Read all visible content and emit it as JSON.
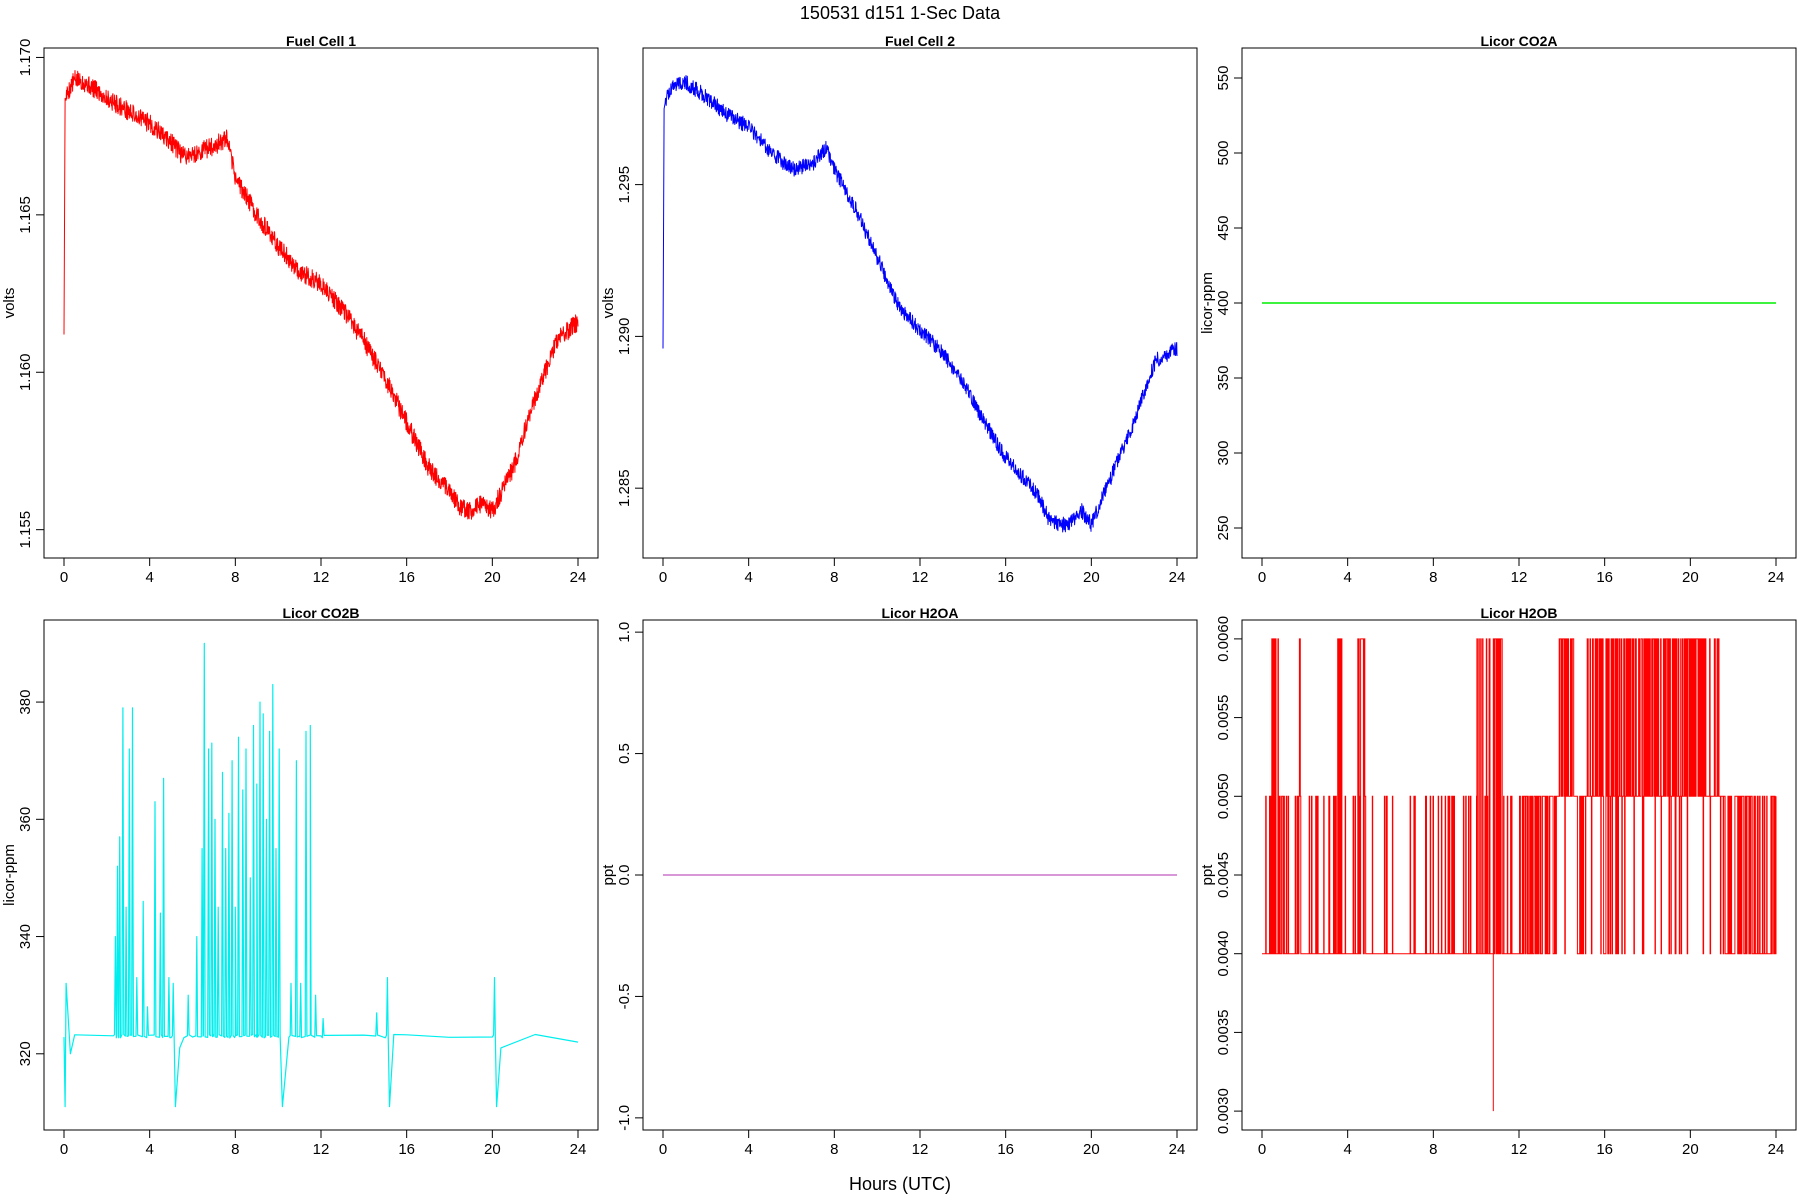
{
  "figure": {
    "title": "150531   d151   1-Sec Data",
    "xlabel": "Hours (UTC)"
  },
  "chart_data": [
    {
      "type": "line",
      "title": "Fuel Cell 1",
      "ylabel": "volts",
      "color": "#ff0000",
      "xlim": [
        0,
        24
      ],
      "ylim": [
        1.1541,
        1.1703
      ],
      "xticks": [
        0,
        4,
        8,
        12,
        16,
        20,
        24
      ],
      "yticks": [
        1.155,
        1.16,
        1.165,
        1.17
      ],
      "ytick_labels": [
        "1.155",
        "1.160",
        "1.165",
        "1.170"
      ],
      "x": [
        0,
        0.05,
        0.1,
        0.5,
        1,
        2,
        3,
        4,
        5,
        5.5,
        6,
        7,
        7.6,
        8,
        9,
        10,
        11,
        12,
        13,
        14,
        15,
        16,
        17,
        18,
        18.5,
        19,
        19.5,
        20,
        21,
        22,
        23,
        24
      ],
      "y": [
        1.1612,
        1.1687,
        1.1688,
        1.1693,
        1.1692,
        1.1687,
        1.1683,
        1.1679,
        1.1673,
        1.1669,
        1.1669,
        1.1672,
        1.1674,
        1.1662,
        1.165,
        1.164,
        1.1632,
        1.1628,
        1.162,
        1.161,
        1.1598,
        1.1584,
        1.157,
        1.1562,
        1.1557,
        1.1556,
        1.1558,
        1.1556,
        1.157,
        1.1592,
        1.161,
        1.1616
      ],
      "noise": 0.0006
    },
    {
      "type": "line",
      "title": "Fuel Cell 2",
      "ylabel": "volts",
      "color": "#0000ff",
      "xlim": [
        0,
        24
      ],
      "ylim": [
        1.2827,
        1.2995
      ],
      "xticks": [
        0,
        4,
        8,
        12,
        16,
        20,
        24
      ],
      "yticks": [
        1.285,
        1.29,
        1.295
      ],
      "ytick_labels": [
        "1.285",
        "1.290",
        "1.295"
      ],
      "x": [
        0,
        0.05,
        0.1,
        0.5,
        1,
        2,
        3,
        4,
        5,
        6,
        7,
        7.6,
        8,
        9,
        10,
        11,
        12,
        13,
        14,
        15,
        16,
        17,
        17.5,
        18,
        18.5,
        19,
        19.5,
        20,
        21,
        22,
        23,
        24
      ],
      "y": [
        1.2896,
        1.2975,
        1.2978,
        1.2983,
        1.2984,
        1.2979,
        1.2973,
        1.2969,
        1.2961,
        1.2955,
        1.2957,
        1.2962,
        1.2955,
        1.2942,
        1.2926,
        1.291,
        1.2902,
        1.2895,
        1.2885,
        1.2872,
        1.286,
        1.2852,
        1.2848,
        1.284,
        1.2838,
        1.2838,
        1.2843,
        1.2838,
        1.2855,
        1.2872,
        1.2892,
        1.2896
      ],
      "noise": 0.0005
    },
    {
      "type": "line",
      "title": "Licor CO2A",
      "ylabel": "licor-ppm",
      "color": "#00ee00",
      "xlim": [
        0,
        24
      ],
      "ylim": [
        230,
        570
      ],
      "xticks": [
        0,
        4,
        8,
        12,
        16,
        20,
        24
      ],
      "yticks": [
        250,
        300,
        350,
        400,
        450,
        500,
        550
      ],
      "ytick_labels": [
        "250",
        "300",
        "350",
        "400",
        "450",
        "500",
        "550"
      ],
      "x": [
        0,
        24
      ],
      "y": [
        400,
        400
      ],
      "noise": 0
    },
    {
      "type": "line",
      "title": "Licor CO2B",
      "ylabel": "licor-ppm",
      "color": "#00eeee",
      "xlim": [
        0,
        24
      ],
      "ylim": [
        307,
        394
      ],
      "xticks": [
        0,
        4,
        8,
        12,
        16,
        20,
        24
      ],
      "yticks": [
        320,
        340,
        360,
        380
      ],
      "ytick_labels": [
        "320",
        "340",
        "360",
        "380"
      ],
      "baseline": 323,
      "x": [
        0,
        0.05,
        0.1,
        0.3,
        0.5,
        2.3,
        3,
        5,
        5.2,
        5.4,
        5.6,
        6,
        7,
        8,
        9,
        10,
        10.2,
        10.5,
        11,
        11.5,
        12,
        14,
        15,
        15.2,
        15.4,
        16,
        18,
        20,
        20.2,
        20.4,
        22,
        24
      ],
      "y": [
        323,
        311,
        332,
        320,
        323,
        323,
        323,
        323,
        311,
        321,
        323,
        323,
        323,
        323,
        323,
        323,
        311,
        323,
        323,
        323,
        323,
        323,
        323,
        311,
        323,
        323,
        323,
        323,
        311,
        321,
        323,
        322
      ],
      "spikes": [
        [
          2.4,
          340
        ],
        [
          2.5,
          352
        ],
        [
          2.6,
          357
        ],
        [
          2.75,
          379
        ],
        [
          2.9,
          345
        ],
        [
          3.05,
          372
        ],
        [
          3.2,
          379
        ],
        [
          3.4,
          333
        ],
        [
          3.7,
          346
        ],
        [
          3.9,
          328
        ],
        [
          4.25,
          363
        ],
        [
          4.5,
          344
        ],
        [
          4.65,
          367
        ],
        [
          4.9,
          333
        ],
        [
          5.1,
          332
        ],
        [
          5.8,
          330
        ],
        [
          6.2,
          340
        ],
        [
          6.45,
          355
        ],
        [
          6.55,
          390
        ],
        [
          6.75,
          372
        ],
        [
          6.9,
          373
        ],
        [
          7.05,
          360
        ],
        [
          7.2,
          345
        ],
        [
          7.4,
          368
        ],
        [
          7.55,
          355
        ],
        [
          7.7,
          361
        ],
        [
          7.85,
          370
        ],
        [
          8.0,
          345
        ],
        [
          8.15,
          374
        ],
        [
          8.35,
          365
        ],
        [
          8.5,
          372
        ],
        [
          8.7,
          350
        ],
        [
          8.85,
          376
        ],
        [
          9.0,
          366
        ],
        [
          9.15,
          380
        ],
        [
          9.3,
          378
        ],
        [
          9.45,
          360
        ],
        [
          9.6,
          375
        ],
        [
          9.75,
          383
        ],
        [
          9.9,
          355
        ],
        [
          10.05,
          372
        ],
        [
          10.6,
          332
        ],
        [
          10.85,
          370
        ],
        [
          11.05,
          332
        ],
        [
          11.3,
          375
        ],
        [
          11.5,
          376
        ],
        [
          11.75,
          330
        ],
        [
          12.1,
          326
        ],
        [
          14.6,
          327
        ],
        [
          15.1,
          333
        ],
        [
          20.1,
          333
        ]
      ]
    },
    {
      "type": "line",
      "title": "Licor H2OA",
      "ylabel": "ppt",
      "color": "#cc77cc",
      "xlim": [
        0,
        24
      ],
      "ylim": [
        -1.05,
        1.05
      ],
      "xticks": [
        0,
        4,
        8,
        12,
        16,
        20,
        24
      ],
      "yticks": [
        -1.0,
        -0.5,
        0.0,
        0.5,
        1.0
      ],
      "ytick_labels": [
        "-1.0",
        "-0.5",
        "0.0",
        "0.5",
        "1.0"
      ],
      "x": [
        0,
        24
      ],
      "y": [
        0,
        0
      ],
      "noise": 0
    },
    {
      "type": "line",
      "title": "Licor H2OB",
      "ylabel": "ppt",
      "color": "#ff0000",
      "xlim": [
        0,
        24
      ],
      "ylim": [
        0.00288,
        0.00612
      ],
      "xticks": [
        0,
        4,
        8,
        12,
        16,
        20,
        24
      ],
      "yticks": [
        0.003,
        0.0035,
        0.004,
        0.0045,
        0.005,
        0.0055,
        0.006
      ],
      "ytick_labels": [
        "0.0030",
        "0.0035",
        "0.0040",
        "0.0045",
        "0.0050",
        "0.0055",
        "0.0060"
      ],
      "x": [
        0,
        24
      ],
      "y": [
        0.005,
        0.005
      ],
      "band": {
        "low": 0.004,
        "high": 0.005,
        "peak": 0.006,
        "min": 0.003,
        "min_x": 10.8
      },
      "dense_low_ranges": [
        [
          0,
          12.2
        ]
      ],
      "high_ranges": [
        [
          0.4,
          0.8
        ],
        [
          1.7,
          1.8
        ],
        [
          3.5,
          3.8
        ],
        [
          4.4,
          4.8
        ],
        [
          10.0,
          11.2
        ],
        [
          13.8,
          14.7
        ],
        [
          15.1,
          21.5
        ]
      ]
    }
  ]
}
